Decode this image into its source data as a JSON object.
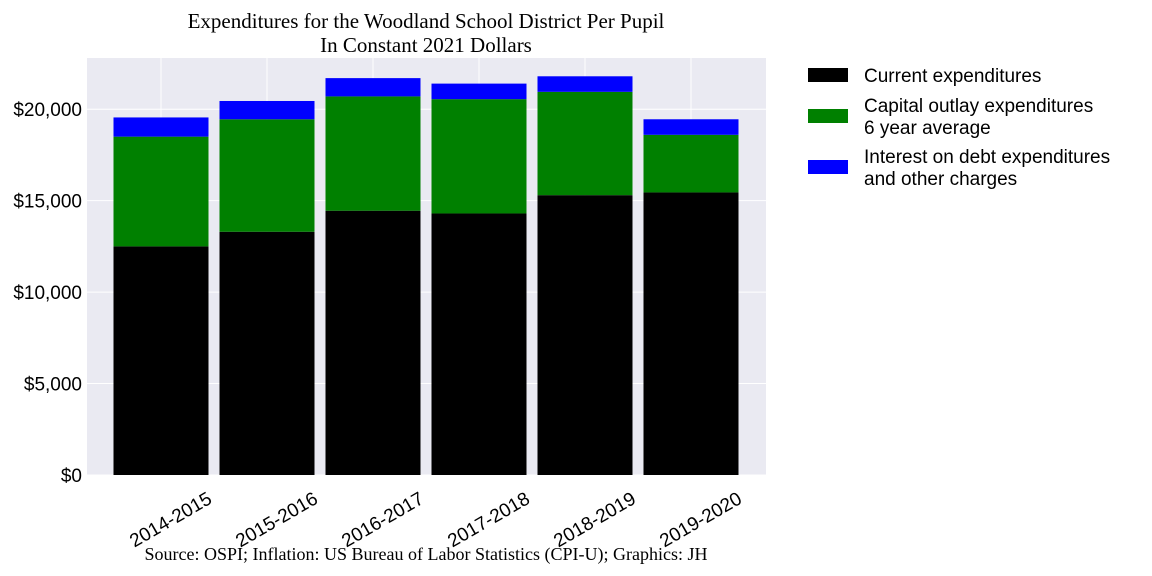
{
  "chart_data": {
    "type": "bar",
    "stacked": true,
    "title": "Expenditures for the Woodland School District Per Pupil",
    "subtitle": "In Constant 2021 Dollars",
    "source": "Source: OSPI; Inflation: US Bureau of Labor Statistics (CPI-U); Graphics: JH",
    "xlabel": "",
    "ylabel": "",
    "ylim": [
      0,
      22800
    ],
    "yticks": [
      0,
      5000,
      10000,
      15000,
      20000
    ],
    "ytick_labels": [
      "$0",
      "$5,000",
      "$10,000",
      "$15,000",
      "$20,000"
    ],
    "grid": true,
    "legend_position": "outside-right-top",
    "categories": [
      "2014-2015",
      "2015-2016",
      "2016-2017",
      "2017-2018",
      "2018-2019",
      "2019-2020"
    ],
    "series": [
      {
        "name_lines": [
          "Current expenditures"
        ],
        "color": "#000000",
        "values": [
          12500,
          13300,
          14450,
          14300,
          15300,
          15450
        ]
      },
      {
        "name_lines": [
          "Capital outlay expenditures",
          "6 year average"
        ],
        "color": "#008000",
        "values": [
          6000,
          6150,
          6250,
          6250,
          5650,
          3150
        ]
      },
      {
        "name_lines": [
          "Interest on debt expenditures",
          "and other charges"
        ],
        "color": "#0000ff",
        "values": [
          1050,
          1000,
          1000,
          850,
          850,
          850
        ]
      }
    ]
  }
}
